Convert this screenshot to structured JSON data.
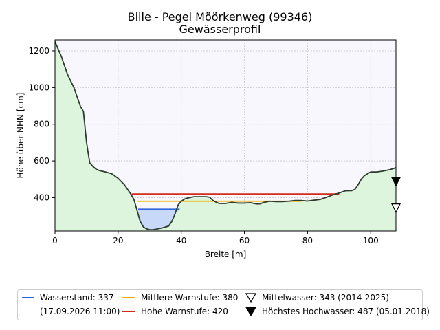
{
  "title": "Bille - Pegel Möörkenweg (99346)",
  "subtitle": "Gewässerprofil",
  "chart_data": {
    "type": "area",
    "title": "Bille - Pegel Möörkenweg (99346)",
    "subtitle": "Gewässerprofil",
    "xlabel": "Breite [m]",
    "ylabel": "Höhe über NHN [cm]",
    "xlim": [
      0,
      108
    ],
    "ylim": [
      218,
      1260
    ],
    "x_ticks": [
      "0",
      "20",
      "40",
      "60",
      "80",
      "100"
    ],
    "y_ticks": [
      "400",
      "600",
      "800",
      "1000",
      "1200"
    ],
    "grid": true,
    "profile": {
      "x": [
        0,
        2,
        4,
        6,
        8,
        9,
        10,
        11,
        12,
        13,
        14,
        16,
        18,
        20,
        22,
        24,
        25,
        26,
        27,
        28,
        29,
        30,
        31,
        32,
        34,
        36,
        37,
        38,
        39,
        40,
        41,
        42,
        44,
        46,
        48,
        49,
        50,
        51,
        52,
        54,
        56,
        58,
        60,
        62,
        63,
        64,
        65,
        66,
        68,
        70,
        72,
        74,
        76,
        78,
        80,
        82,
        84,
        86,
        88,
        90,
        92,
        94,
        95,
        96,
        97,
        98,
        99,
        100,
        102,
        104,
        106,
        108
      ],
      "y": [
        1250,
        1170,
        1070,
        1000,
        900,
        870,
        700,
        590,
        570,
        555,
        548,
        540,
        530,
        505,
        470,
        420,
        390,
        330,
        270,
        240,
        230,
        225,
        225,
        228,
        235,
        245,
        270,
        310,
        360,
        380,
        392,
        398,
        405,
        405,
        405,
        402,
        385,
        375,
        368,
        368,
        374,
        370,
        370,
        372,
        368,
        365,
        366,
        373,
        380,
        378,
        378,
        380,
        384,
        384,
        381,
        386,
        390,
        402,
        415,
        425,
        437,
        438,
        445,
        470,
        500,
        520,
        530,
        540,
        540,
        545,
        552,
        563
      ]
    },
    "series": [
      {
        "name": "Wasserstand: 337",
        "date": "(17.09.2026 11:00)",
        "value": 337,
        "color": "#3366dd",
        "fill": "#c8d8f8",
        "x_range": [
          26.3,
          39.5
        ]
      },
      {
        "name": "Mittlere Warnstufe: 380",
        "value": 380,
        "color": "#f0b400",
        "x_range": [
          26.0,
          78.0
        ]
      },
      {
        "name": "Hohe Warnstufe: 420",
        "value": 420,
        "color": "#d42a1a",
        "x_range": [
          24.3,
          90.0
        ]
      },
      {
        "name": "Mittelwasser: 343 (2014-2025)",
        "value": 343,
        "marker": "triangle-down-open",
        "x": 108
      },
      {
        "name": "Höchstes Hochwasser: 487 (05.01.2018)",
        "value": 487,
        "marker": "triangle-down-filled",
        "x": 108
      }
    ],
    "colors": {
      "ground_fill": "#dcf5dc",
      "profile_line": "#2d3a2d",
      "sky_fill": "#f7f7fd"
    },
    "legend_position": "bottom"
  },
  "legend": {
    "wasserstand": "Wasserstand: 337",
    "wasserstand_date": "(17.09.2026 11:00)",
    "mittlere": "Mittlere Warnstufe: 380",
    "hohe": "Hohe Warnstufe: 420",
    "mittelwasser": "Mittelwasser: 343 (2014-2025)",
    "hochwasser": "Höchstes Hochwasser: 487 (05.01.2018)"
  }
}
